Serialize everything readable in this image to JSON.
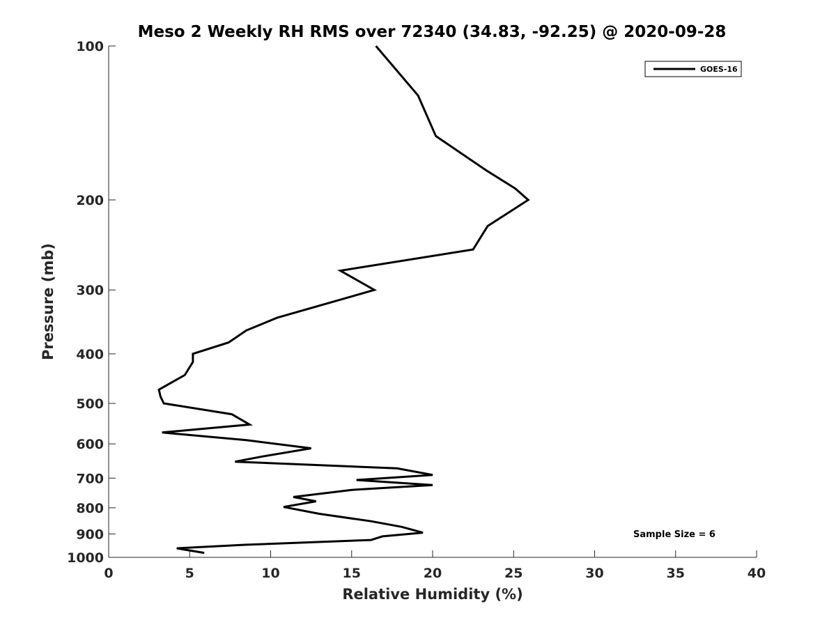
{
  "chart_data": {
    "type": "line",
    "title": "Meso 2 Weekly RH RMS over 72340 (34.83, -92.25) @ 2020-09-28",
    "xlabel": "Relative Humidity (%)",
    "ylabel": "Pressure (mb)",
    "xlim": [
      0,
      40
    ],
    "ylim": [
      100,
      1000
    ],
    "y_scale": "log",
    "y_inverted": true,
    "x_ticks": [
      0,
      5,
      10,
      15,
      20,
      25,
      30,
      35,
      40
    ],
    "y_ticks": [
      100,
      200,
      300,
      400,
      500,
      600,
      700,
      800,
      900,
      1000
    ],
    "legend_position": "top-right",
    "grid": false,
    "annotation": "Sample Size = 6",
    "series": [
      {
        "name": "GOES-16",
        "color": "#000000",
        "points": [
          [
            16.5,
            100
          ],
          [
            19.1,
            125
          ],
          [
            20.2,
            150
          ],
          [
            23.3,
            175
          ],
          [
            25.1,
            190
          ],
          [
            25.9,
            200
          ],
          [
            23.4,
            225
          ],
          [
            22.5,
            250
          ],
          [
            14.3,
            275
          ],
          [
            16.4,
            300
          ],
          [
            10.4,
            340
          ],
          [
            8.5,
            360
          ],
          [
            7.4,
            380
          ],
          [
            5.2,
            400
          ],
          [
            5.2,
            415
          ],
          [
            4.7,
            440
          ],
          [
            3.1,
            470
          ],
          [
            3.2,
            485
          ],
          [
            3.4,
            500
          ],
          [
            7.6,
            525
          ],
          [
            8.7,
            550
          ],
          [
            3.3,
            570
          ],
          [
            8.5,
            590
          ],
          [
            12.5,
            612
          ],
          [
            9.5,
            635
          ],
          [
            7.8,
            650
          ],
          [
            17.8,
            670
          ],
          [
            20.0,
            690
          ],
          [
            15.3,
            706
          ],
          [
            20.0,
            722
          ],
          [
            15.0,
            738
          ],
          [
            11.4,
            762
          ],
          [
            12.8,
            777
          ],
          [
            10.8,
            797
          ],
          [
            13.0,
            822
          ],
          [
            16.2,
            850
          ],
          [
            18.1,
            872
          ],
          [
            19.4,
            895
          ],
          [
            16.9,
            910
          ],
          [
            16.2,
            925
          ],
          [
            8.4,
            945
          ],
          [
            4.2,
            960
          ],
          [
            5.9,
            980
          ]
        ]
      }
    ]
  }
}
